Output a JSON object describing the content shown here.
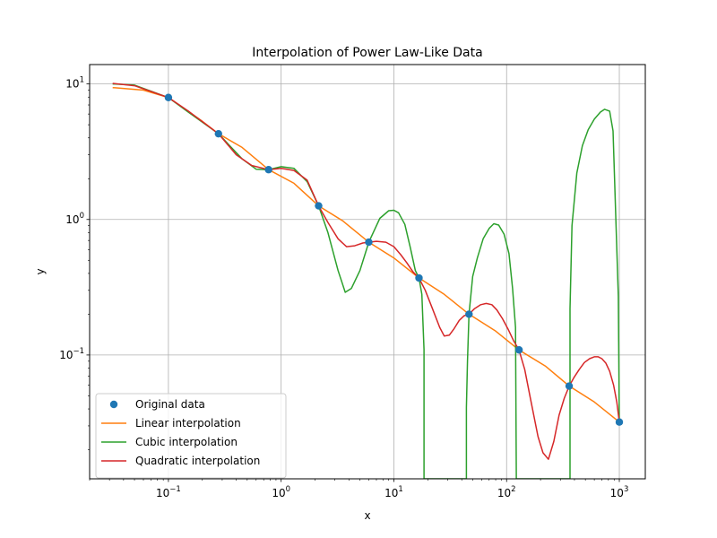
{
  "chart_data": {
    "type": "line",
    "title": "Interpolation of Power Law-Like Data",
    "xlabel": "x",
    "ylabel": "y",
    "xscale": "log",
    "yscale": "log",
    "xlim": [
      0.02,
      1700
    ],
    "ylim": [
      0.0122,
      13.9
    ],
    "grid": true,
    "legend_position": "lower left",
    "x_ticks": [
      {
        "value": 0.1,
        "base": "10",
        "exp": "−1"
      },
      {
        "value": 1,
        "base": "10",
        "exp": "0"
      },
      {
        "value": 10,
        "base": "10",
        "exp": "1"
      },
      {
        "value": 100,
        "base": "10",
        "exp": "2"
      },
      {
        "value": 1000,
        "base": "10",
        "exp": "3"
      }
    ],
    "y_ticks": [
      {
        "value": 0.1,
        "base": "10",
        "exp": "−1"
      },
      {
        "value": 1,
        "base": "10",
        "exp": "0"
      },
      {
        "value": 10,
        "base": "10",
        "exp": "1"
      }
    ],
    "series": [
      {
        "name": "Original data",
        "kind": "markers",
        "color": "#1f77b4",
        "x": [
          0.1,
          0.278,
          0.774,
          2.15,
          5.99,
          16.7,
          46.4,
          129,
          359,
          1000
        ],
        "y": [
          7.94,
          4.29,
          2.33,
          1.26,
          0.68,
          0.37,
          0.2,
          0.109,
          0.059,
          0.032
        ]
      },
      {
        "name": "Linear interpolation",
        "kind": "line",
        "color": "#ff7f0e",
        "x": [
          0.032,
          0.06,
          0.1,
          0.2,
          0.278,
          0.45,
          0.774,
          1.3,
          2.15,
          3.5,
          5.99,
          10,
          16.7,
          28,
          46.4,
          80,
          129,
          220,
          359,
          600,
          1000
        ],
        "y": [
          9.4,
          9.0,
          7.94,
          5.3,
          4.29,
          3.4,
          2.33,
          1.85,
          1.26,
          0.98,
          0.68,
          0.52,
          0.37,
          0.28,
          0.2,
          0.15,
          0.109,
          0.083,
          0.059,
          0.045,
          0.032
        ]
      },
      {
        "name": "Cubic interpolation",
        "kind": "line",
        "color": "#2ca02c",
        "x": [
          0.032,
          0.05,
          0.1,
          0.15,
          0.278,
          0.45,
          0.6,
          0.774,
          1.0,
          1.3,
          1.7,
          2.15,
          2.6,
          3.2,
          3.7,
          4.2,
          5.0,
          5.99,
          7.5,
          9.0,
          10,
          11,
          12.5,
          14,
          15.5,
          16.7,
          17.7,
          18.5,
          18.5,
          18.5,
          44,
          44,
          45,
          46.4,
          50,
          55,
          62,
          70,
          77,
          85,
          95,
          105,
          113,
          120,
          122,
          122,
          365,
          365,
          380,
          420,
          470,
          530,
          600,
          680,
          740,
          820,
          880,
          980,
          1000
        ],
        "y": [
          10.0,
          9.8,
          7.94,
          6.2,
          4.29,
          2.8,
          2.35,
          2.33,
          2.45,
          2.38,
          1.9,
          1.26,
          0.8,
          0.42,
          0.29,
          0.31,
          0.42,
          0.68,
          1.02,
          1.16,
          1.17,
          1.12,
          0.92,
          0.62,
          0.42,
          0.37,
          0.28,
          0.11,
          0.0122,
          0.0122,
          0.0122,
          0.041,
          0.09,
          0.2,
          0.38,
          0.52,
          0.72,
          0.86,
          0.93,
          0.91,
          0.78,
          0.56,
          0.31,
          0.16,
          0.0122,
          0.0122,
          0.0122,
          0.22,
          0.9,
          2.2,
          3.5,
          4.6,
          5.5,
          6.2,
          6.5,
          6.3,
          4.5,
          0.27,
          0.032
        ]
      },
      {
        "name": "Quadratic interpolation",
        "kind": "line",
        "color": "#d62728",
        "x": [
          0.032,
          0.05,
          0.1,
          0.15,
          0.278,
          0.4,
          0.55,
          0.774,
          1.0,
          1.3,
          1.7,
          2.15,
          2.6,
          3.2,
          3.8,
          4.5,
          5.3,
          5.99,
          7.0,
          8.5,
          10,
          11.5,
          13,
          14.8,
          16.7,
          19,
          22,
          25.5,
          28,
          31,
          34,
          38,
          42,
          46.4,
          52,
          59,
          66,
          74,
          82,
          92,
          103,
          115,
          129,
          145,
          165,
          190,
          210,
          235,
          262,
          292,
          325,
          359,
          395,
          440,
          490,
          545,
          600,
          650,
          700,
          760,
          820,
          890,
          950,
          1000
        ],
        "y": [
          10.1,
          9.7,
          7.94,
          6.3,
          4.29,
          3.0,
          2.5,
          2.33,
          2.38,
          2.3,
          1.95,
          1.26,
          0.95,
          0.72,
          0.63,
          0.64,
          0.67,
          0.68,
          0.69,
          0.68,
          0.63,
          0.55,
          0.48,
          0.41,
          0.37,
          0.3,
          0.22,
          0.16,
          0.138,
          0.14,
          0.155,
          0.18,
          0.195,
          0.2,
          0.22,
          0.235,
          0.24,
          0.235,
          0.215,
          0.185,
          0.155,
          0.128,
          0.109,
          0.078,
          0.045,
          0.025,
          0.019,
          0.017,
          0.023,
          0.036,
          0.048,
          0.059,
          0.068,
          0.078,
          0.088,
          0.094,
          0.097,
          0.097,
          0.094,
          0.087,
          0.076,
          0.06,
          0.045,
          0.032
        ]
      }
    ]
  }
}
